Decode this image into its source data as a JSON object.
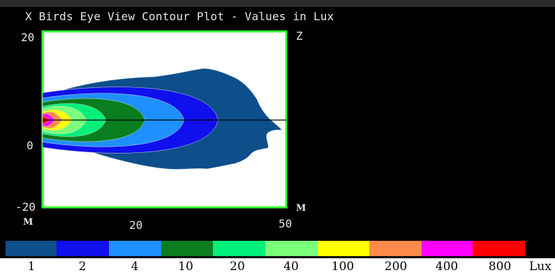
{
  "chart_data": {
    "type": "contour",
    "title": "X Birds Eye View Contour Plot - Values in Lux",
    "y_axis": {
      "ticks": [
        "20",
        "0",
        "-20"
      ],
      "unit": "M",
      "range": [
        -20,
        20
      ]
    },
    "x_axis": {
      "ticks": [
        "20",
        "50"
      ],
      "unit": "M",
      "range": [
        0,
        50
      ]
    },
    "z_label": "Z",
    "legend": {
      "levels": [
        "1",
        "2",
        "4",
        "10",
        "20",
        "40",
        "100",
        "200",
        "400",
        "800"
      ],
      "unit": "Lux",
      "colors": [
        "#0d4f8b",
        "#1010ee",
        "#1e90ff",
        "#0a7d1e",
        "#00f07a",
        "#7bff7b",
        "#ffff00",
        "#ff8a4a",
        "#ff00ff",
        "#ff0000"
      ]
    },
    "contours": [
      {
        "level": "1",
        "max_x": 48
      },
      {
        "level": "2",
        "max_x": 36
      },
      {
        "level": "4",
        "max_x": 29
      },
      {
        "level": "10",
        "max_x": 21
      },
      {
        "level": "20",
        "max_x": 13
      },
      {
        "level": "40",
        "max_x": 9
      },
      {
        "level": "100",
        "max_x": 6
      },
      {
        "level": "200",
        "max_x": 4
      },
      {
        "level": "400",
        "max_x": 2.5
      },
      {
        "level": "800",
        "max_x": 1.5
      }
    ],
    "plot_background": "#ffffff",
    "plot_border": "#33ff33",
    "axis_line": "#000000"
  }
}
